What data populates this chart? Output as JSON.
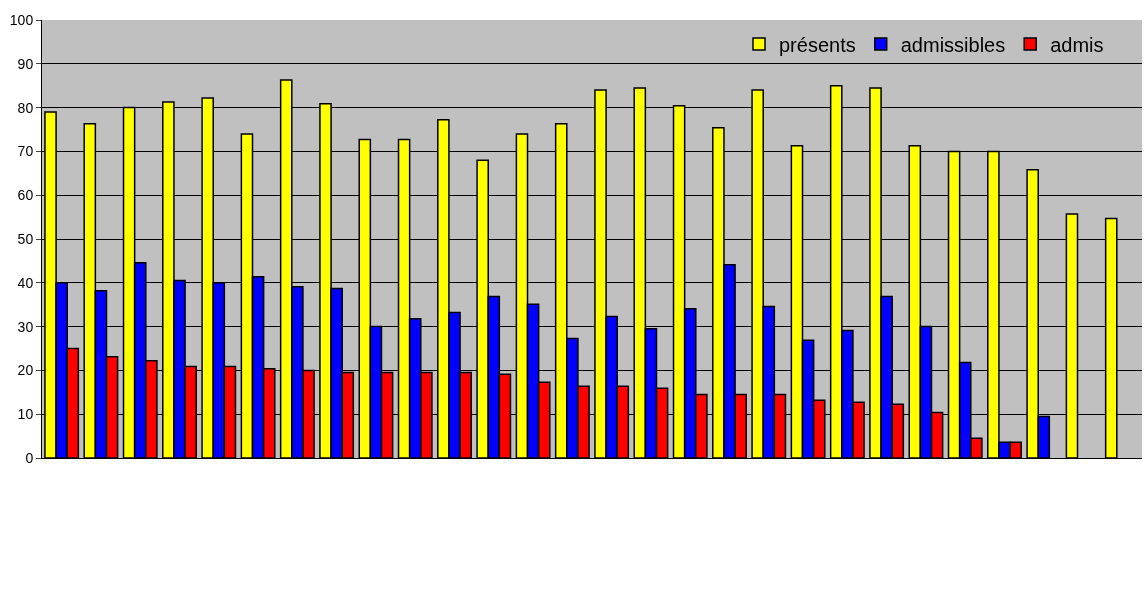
{
  "chart_data": {
    "type": "bar",
    "categories": [
      null,
      null,
      null,
      null,
      null,
      null,
      null,
      null,
      null,
      null,
      null,
      null,
      null,
      null,
      null,
      null,
      null,
      null,
      null,
      null,
      null,
      null,
      null,
      null,
      null,
      null,
      null,
      null
    ],
    "series": [
      {
        "name": "présents",
        "color": "#ffff00",
        "values": [
          79,
          76.3,
          80,
          81.3,
          82.2,
          74,
          86.3,
          80.9,
          72.7,
          72.7,
          77.2,
          68,
          74,
          76.3,
          84,
          84.5,
          80.4,
          75.4,
          84,
          71.3,
          85,
          84.5,
          71.3,
          70,
          70,
          65.8,
          55.7,
          54.7
        ]
      },
      {
        "name": "admissibles",
        "color": "#0000ff",
        "values": [
          40,
          38.2,
          44.6,
          40.5,
          40,
          41.4,
          39.1,
          38.7,
          30,
          31.8,
          33.2,
          36.9,
          35.1,
          27.3,
          32.3,
          29.5,
          34.1,
          44.1,
          34.6,
          26.9,
          29.1,
          36.9,
          30,
          21.8,
          3.6,
          9.5,
          null,
          null
        ]
      },
      {
        "name": "admis",
        "color": "#ff0000",
        "values": [
          25,
          23.1,
          22.2,
          20.9,
          20.9,
          20.4,
          20,
          19.5,
          19.5,
          19.5,
          19.5,
          19.1,
          17.3,
          16.4,
          16.4,
          15.9,
          14.5,
          14.5,
          14.5,
          13.2,
          12.7,
          12.3,
          10.4,
          4.5,
          3.6,
          null,
          null,
          null
        ]
      }
    ],
    "ylim": [
      0,
      100
    ],
    "yticks": [
      0,
      10,
      20,
      30,
      40,
      50,
      60,
      70,
      80,
      90,
      100
    ],
    "grid": "y",
    "legend": "top right",
    "tick_labels": "y"
  }
}
